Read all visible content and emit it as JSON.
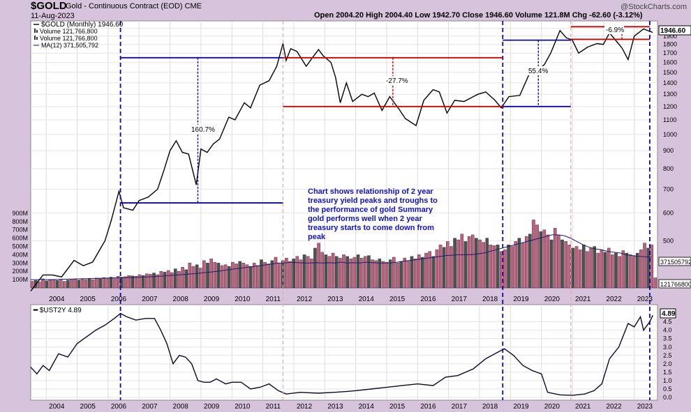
{
  "header": {
    "ticker": "$GOLD",
    "description": "Gold - Continuous Contract (EOD)",
    "exchange": "CME",
    "date": "11-Aug-2023",
    "ohlc": "Open 2004.20  High 2004.40  Low 1942.70  Close 1946.60  Volume 121.8M  Chg -62.60 (-3.12%)",
    "logo": "@StockCharts.com"
  },
  "legend": {
    "gold": "$GOLD (Monthly) 1946.60",
    "volume1": "Volume 121,766,800",
    "volume2": "Volume 121,766,800",
    "ma": "MA(12) 371,505,792"
  },
  "annotation": {
    "line1": "Chart shows relationship of 2 year",
    "line2": "treasury yield peaks and troughs to",
    "line3": "the performance of gold  Summary",
    "line4": "gold performs well when 2 year",
    "line5": "treasury starts to come down from",
    "line6": "peak"
  },
  "moves": {
    "m1": "160.7%",
    "m2": "-27.7%",
    "m3": "55.4%",
    "m4": "-6.9%"
  },
  "price_labels": {
    "last": "1946.60",
    "vol_ma": "371505792",
    "vol_last": "121766800",
    "ust": "4.89"
  },
  "colors": {
    "panel_bg": "#ffffff",
    "outer_bg": "#d8c3dc",
    "line": "#000000",
    "blue_mark": "#0000aa",
    "red_mark": "#cc0000",
    "vol_up": "#c06080",
    "vol_dn": "#505050"
  },
  "chart_data": [
    {
      "type": "line",
      "title": "$GOLD (Monthly)",
      "scale": "log",
      "ylim": [
        390,
        2060
      ],
      "y_ticks": [
        500,
        600,
        700,
        800,
        900,
        1000,
        1100,
        1200,
        1300,
        1400,
        1500,
        1600,
        1700,
        1800,
        1900,
        2000
      ],
      "x_ticks": [
        "2004",
        "2005",
        "2006",
        "2007",
        "2008",
        "2009",
        "2010",
        "2011",
        "2012",
        "2013",
        "2014",
        "2015",
        "2016",
        "2017",
        "2018",
        "2019",
        "2020",
        "2021",
        "2022",
        "2023"
      ],
      "series": [
        {
          "name": "$GOLD",
          "points": [
            [
              2003.5,
              360
            ],
            [
              2003.9,
              400
            ],
            [
              2004.2,
              400
            ],
            [
              2004.5,
              395
            ],
            [
              2004.9,
              440
            ],
            [
              2005.2,
              425
            ],
            [
              2005.5,
              435
            ],
            [
              2005.9,
              500
            ],
            [
              2006.1,
              570
            ],
            [
              2006.35,
              690
            ],
            [
              2006.5,
              620
            ],
            [
              2006.8,
              610
            ],
            [
              2007.0,
              650
            ],
            [
              2007.3,
              665
            ],
            [
              2007.6,
              700
            ],
            [
              2007.8,
              790
            ],
            [
              2008.0,
              900
            ],
            [
              2008.2,
              960
            ],
            [
              2008.4,
              890
            ],
            [
              2008.6,
              880
            ],
            [
              2008.75,
              780
            ],
            [
              2008.85,
              720
            ],
            [
              2009.0,
              910
            ],
            [
              2009.2,
              890
            ],
            [
              2009.4,
              940
            ],
            [
              2009.6,
              970
            ],
            [
              2009.9,
              1120
            ],
            [
              2010.1,
              1100
            ],
            [
              2010.4,
              1230
            ],
            [
              2010.6,
              1190
            ],
            [
              2010.9,
              1380
            ],
            [
              2011.2,
              1420
            ],
            [
              2011.45,
              1560
            ],
            [
              2011.65,
              1810
            ],
            [
              2011.75,
              1620
            ],
            [
              2011.9,
              1750
            ],
            [
              2012.1,
              1720
            ],
            [
              2012.4,
              1560
            ],
            [
              2012.6,
              1650
            ],
            [
              2012.8,
              1740
            ],
            [
              2012.95,
              1670
            ],
            [
              2013.2,
              1600
            ],
            [
              2013.35,
              1450
            ],
            [
              2013.5,
              1230
            ],
            [
              2013.7,
              1400
            ],
            [
              2013.9,
              1240
            ],
            [
              2014.2,
              1300
            ],
            [
              2014.4,
              1280
            ],
            [
              2014.6,
              1310
            ],
            [
              2014.85,
              1170
            ],
            [
              2015.1,
              1280
            ],
            [
              2015.4,
              1180
            ],
            [
              2015.6,
              1110
            ],
            [
              2015.95,
              1060
            ],
            [
              2016.2,
              1250
            ],
            [
              2016.5,
              1340
            ],
            [
              2016.7,
              1320
            ],
            [
              2016.95,
              1150
            ],
            [
              2017.2,
              1250
            ],
            [
              2017.5,
              1240
            ],
            [
              2017.8,
              1280
            ],
            [
              2017.95,
              1300
            ],
            [
              2018.2,
              1320
            ],
            [
              2018.5,
              1250
            ],
            [
              2018.7,
              1190
            ],
            [
              2018.95,
              1280
            ],
            [
              2019.3,
              1290
            ],
            [
              2019.6,
              1480
            ],
            [
              2019.9,
              1520
            ],
            [
              2020.1,
              1580
            ],
            [
              2020.3,
              1700
            ],
            [
              2020.6,
              1970
            ],
            [
              2020.8,
              1880
            ],
            [
              2021.0,
              1850
            ],
            [
              2021.2,
              1700
            ],
            [
              2021.5,
              1770
            ],
            [
              2021.8,
              1810
            ],
            [
              2022.0,
              1800
            ],
            [
              2022.2,
              1940
            ],
            [
              2022.6,
              1760
            ],
            [
              2022.8,
              1630
            ],
            [
              2023.0,
              1900
            ],
            [
              2023.3,
              1990
            ],
            [
              2023.6,
              1946.6
            ]
          ]
        }
      ],
      "markers": [
        {
          "kind": "vline",
          "x": 2006.4,
          "color": "blue"
        },
        {
          "kind": "vline",
          "x": 2011.65,
          "color": "pink"
        },
        {
          "kind": "vline",
          "x": 2018.75,
          "color": "blue"
        },
        {
          "kind": "vline",
          "x": 2020.95,
          "color": "pink"
        },
        {
          "kind": "vline",
          "x": 2023.5,
          "color": "blue"
        },
        {
          "kind": "hline",
          "y": 1650,
          "x0": 2006.4,
          "x1": 2011.65,
          "color": "blue"
        },
        {
          "kind": "hline",
          "y": 640,
          "x0": 2006.4,
          "x1": 2011.65,
          "color": "blue"
        },
        {
          "kind": "hline",
          "y": 1650,
          "x0": 2011.65,
          "x1": 2018.75,
          "color": "red"
        },
        {
          "kind": "hline",
          "y": 1200,
          "x0": 2011.65,
          "x1": 2018.75,
          "color": "red"
        },
        {
          "kind": "hline",
          "y": 1850,
          "x0": 2018.75,
          "x1": 2020.95,
          "color": "blue"
        },
        {
          "kind": "hline",
          "y": 1200,
          "x0": 2018.75,
          "x1": 2020.95,
          "color": "blue"
        },
        {
          "kind": "hline",
          "y": 2020,
          "x0": 2020.95,
          "x1": 2023.5,
          "color": "red"
        },
        {
          "kind": "hline",
          "y": 1860,
          "x0": 2020.95,
          "x1": 2023.5,
          "color": "red"
        }
      ]
    },
    {
      "type": "bar",
      "title": "Volume",
      "ylim": [
        0,
        950
      ],
      "y_ticks": [
        100,
        200,
        300,
        400,
        500,
        600,
        700,
        800,
        900
      ],
      "y_tick_suffix": "M",
      "values_start_year": 2003.5,
      "values": [
        80,
        90,
        75,
        110,
        85,
        95,
        100,
        90,
        105,
        80,
        95,
        100,
        110,
        95,
        105,
        100,
        115,
        100,
        120,
        110,
        125,
        115,
        130,
        120,
        140,
        130,
        135,
        150,
        145,
        140,
        160,
        150,
        170,
        165,
        180,
        160,
        200,
        190,
        210,
        185,
        230,
        200,
        250,
        220,
        300,
        260,
        280,
        240,
        330,
        300,
        350,
        310,
        300,
        270,
        280,
        260,
        310,
        290,
        320,
        300,
        280,
        260,
        300,
        270,
        340,
        310,
        290,
        330,
        370,
        300,
        330,
        360,
        320,
        350,
        380,
        340,
        400,
        380,
        350,
        480,
        540,
        430,
        400,
        380,
        420,
        380,
        360,
        400,
        380,
        350,
        370,
        400,
        360,
        380,
        390,
        340,
        330,
        350,
        320,
        310,
        340,
        370,
        300,
        320,
        360,
        330,
        380,
        350,
        400,
        370,
        420,
        440,
        380,
        460,
        520,
        490,
        560,
        500,
        600,
        580,
        650,
        560,
        620,
        640,
        600,
        580,
        550,
        600,
        520,
        510,
        520,
        440,
        460,
        520,
        500,
        560,
        600,
        540,
        620,
        650,
        820,
        760,
        680,
        700,
        640,
        580,
        720,
        640,
        580,
        560,
        520,
        480,
        500,
        460,
        520,
        440,
        480,
        500,
        420,
        460,
        430,
        480,
        400,
        420,
        380,
        450,
        420,
        400,
        380,
        420,
        460,
        540,
        480,
        520,
        121.8
      ],
      "ma": [
        100,
        100,
        100,
        100,
        102,
        104,
        106,
        108,
        110,
        112,
        114,
        116,
        118,
        120,
        122,
        124,
        126,
        128,
        130,
        134,
        138,
        142,
        148,
        152,
        158,
        164,
        170,
        176,
        184,
        192,
        200,
        210,
        220,
        230,
        240,
        250,
        260,
        270,
        280,
        290,
        300,
        300,
        310,
        305,
        300,
        300,
        305,
        300,
        305,
        300,
        310,
        300,
        305,
        300,
        310,
        305,
        300,
        300,
        302,
        310,
        320,
        330,
        340,
        350,
        360,
        370,
        380,
        390,
        395,
        400,
        400,
        400,
        410,
        420,
        440,
        460,
        480,
        500,
        520,
        540,
        560,
        580,
        600,
        620,
        640,
        640,
        630,
        600,
        560,
        520,
        490,
        470,
        460,
        440,
        430,
        420,
        400,
        390,
        380,
        375,
        372
      ],
      "ma_label": "MA(12)"
    },
    {
      "type": "line",
      "title": "$UST2Y",
      "ylim": [
        0,
        4.9
      ],
      "y_ticks": [
        0.0,
        0.5,
        1.0,
        1.5,
        2.0,
        2.5,
        3.0,
        3.5,
        4.0,
        4.5
      ],
      "x_ticks": [
        "2004",
        "2005",
        "2006",
        "2007",
        "2008",
        "2009",
        "2010",
        "2011",
        "2012",
        "2013",
        "2014",
        "2015",
        "2016",
        "2017",
        "2018",
        "2019",
        "2020",
        "2021",
        "2022",
        "2023"
      ],
      "series": [
        {
          "name": "$UST2Y",
          "points": [
            [
              2003.5,
              1.8
            ],
            [
              2003.7,
              1.4
            ],
            [
              2003.9,
              1.9
            ],
            [
              2004.1,
              1.6
            ],
            [
              2004.4,
              2.6
            ],
            [
              2004.7,
              2.4
            ],
            [
              2005.0,
              3.2
            ],
            [
              2005.3,
              3.6
            ],
            [
              2005.6,
              4.0
            ],
            [
              2005.9,
              4.3
            ],
            [
              2006.2,
              4.7
            ],
            [
              2006.4,
              5.0
            ],
            [
              2006.6,
              4.8
            ],
            [
              2006.9,
              4.6
            ],
            [
              2007.2,
              4.7
            ],
            [
              2007.5,
              4.7
            ],
            [
              2007.7,
              4.0
            ],
            [
              2007.9,
              3.2
            ],
            [
              2008.1,
              2.0
            ],
            [
              2008.3,
              2.5
            ],
            [
              2008.5,
              2.4
            ],
            [
              2008.7,
              2.0
            ],
            [
              2008.9,
              1.0
            ],
            [
              2009.1,
              0.9
            ],
            [
              2009.3,
              0.9
            ],
            [
              2009.5,
              1.1
            ],
            [
              2009.8,
              0.8
            ],
            [
              2010.0,
              0.9
            ],
            [
              2010.3,
              0.9
            ],
            [
              2010.6,
              0.5
            ],
            [
              2010.9,
              0.6
            ],
            [
              2011.2,
              0.8
            ],
            [
              2011.5,
              0.4
            ],
            [
              2011.75,
              0.2
            ],
            [
              2012.2,
              0.3
            ],
            [
              2012.8,
              0.25
            ],
            [
              2013.3,
              0.3
            ],
            [
              2013.7,
              0.35
            ],
            [
              2014.0,
              0.4
            ],
            [
              2014.5,
              0.5
            ],
            [
              2015.0,
              0.6
            ],
            [
              2015.5,
              0.7
            ],
            [
              2016.0,
              0.8
            ],
            [
              2016.5,
              0.7
            ],
            [
              2016.9,
              1.2
            ],
            [
              2017.3,
              1.3
            ],
            [
              2017.8,
              1.7
            ],
            [
              2018.2,
              2.3
            ],
            [
              2018.5,
              2.6
            ],
            [
              2018.8,
              2.9
            ],
            [
              2019.1,
              2.5
            ],
            [
              2019.4,
              1.9
            ],
            [
              2019.7,
              1.6
            ],
            [
              2020.0,
              1.4
            ],
            [
              2020.2,
              0.3
            ],
            [
              2020.6,
              0.15
            ],
            [
              2021.0,
              0.12
            ],
            [
              2021.4,
              0.2
            ],
            [
              2021.7,
              0.4
            ],
            [
              2021.95,
              0.8
            ],
            [
              2022.2,
              2.3
            ],
            [
              2022.5,
              3.0
            ],
            [
              2022.8,
              4.4
            ],
            [
              2023.0,
              4.2
            ],
            [
              2023.2,
              4.8
            ],
            [
              2023.3,
              4.0
            ],
            [
              2023.5,
              4.5
            ],
            [
              2023.6,
              4.89
            ]
          ]
        }
      ]
    }
  ]
}
